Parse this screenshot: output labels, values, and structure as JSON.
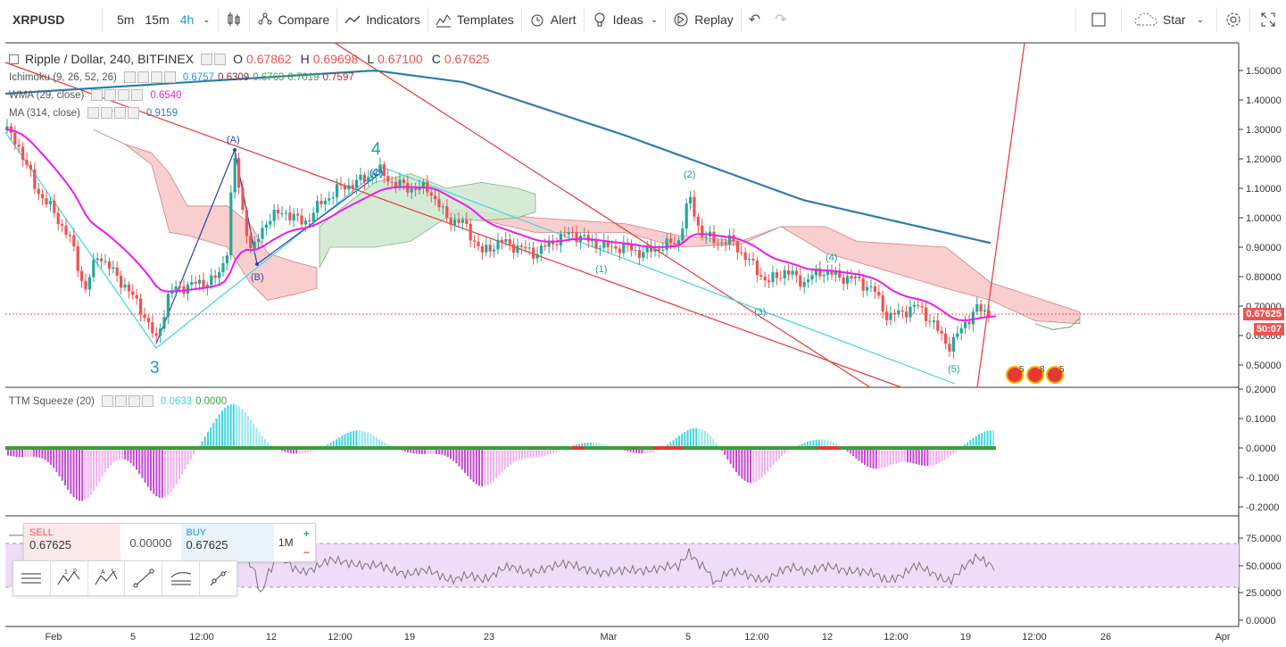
{
  "toolbar": {
    "symbol": "XRPUSD",
    "intervals": [
      "5m",
      "15m",
      "4h"
    ],
    "active_interval": "4h",
    "compare": "Compare",
    "indicators": "Indicators",
    "templates": "Templates",
    "alert": "Alert",
    "ideas": "Ideas",
    "replay": "Replay",
    "star": "Star"
  },
  "legend": {
    "title": "Ripple / Dollar, 240, BITFINEX",
    "o_label": "O",
    "o": "0.67862",
    "h_label": "H",
    "h": "0.69698",
    "l_label": "L",
    "l": "0.67100",
    "c_label": "C",
    "c": "0.67625",
    "ichimoku": "Ichimoku (9, 26, 52, 26)",
    "ichimoku_vals": [
      "0.6757",
      "0.6309",
      "0.6763",
      "0.7019",
      "0.7597"
    ],
    "wma": "WMA (29, close)",
    "wma_val": "0.6540",
    "ma": "MA (314, close)",
    "ma_val": "0.9159",
    "ttm": "TTM Squeeze (20)",
    "ttm_vals": [
      "0.0633",
      "0.0000"
    ]
  },
  "price_axis": [
    "1.50000",
    "1.40000",
    "1.30000",
    "1.20000",
    "1.10000",
    "1.00000",
    "0.90000",
    "0.80000",
    "0.70000",
    "0.60000",
    "0.50000"
  ],
  "ttm_axis": [
    "0.2000",
    "0.1000",
    "0.0000",
    "-0.1000",
    "-0.2000"
  ],
  "rsi_axis": [
    "75.0000",
    "50.0000",
    "25.0000",
    "0.0000"
  ],
  "current_price": "0.67625",
  "countdown": "50:07",
  "time_axis": [
    "Feb",
    "5",
    "12:00",
    "12",
    "12:00",
    "19",
    "23",
    "Mar",
    "5",
    "12:00",
    "12",
    "12:00",
    "19",
    "12:00",
    "26",
    "Apr"
  ],
  "wave_labels": {
    "w3": "3",
    "w4": "4",
    "a": "(A)",
    "b": "(B)",
    "c": "(C)",
    "i1": "(1)",
    "i2": "(2)",
    "i3": "(3)",
    "i4": "(4)",
    "i5": "(5)"
  },
  "events": [
    "5",
    "8",
    "5"
  ],
  "trade": {
    "sell_label": "SELL",
    "sell_price": "0.67625",
    "spread": "0.00000",
    "buy_label": "BUY",
    "buy_price": "0.67625",
    "interval": "1M",
    "plus": "+",
    "minus": "−"
  },
  "colors": {
    "up": "#26a69a",
    "down": "#ef5350",
    "wma": "#e91eea",
    "ma": "#2e7ea9",
    "cloud_red": "#f7c6c6",
    "cloud_green": "#cfe8cf",
    "cyan": "#3ed6e0",
    "badge": "#ef5350"
  }
}
